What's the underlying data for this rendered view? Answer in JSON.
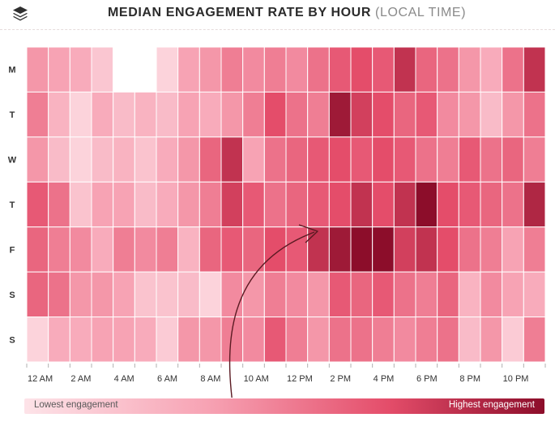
{
  "header": {
    "title_main": "MEDIAN ENGAGEMENT RATE BY HOUR",
    "title_sub": "(LOCAL TIME)"
  },
  "colors": {
    "low": "#fde3e8",
    "mid": "#f7a3b4",
    "high": "#e44d6a",
    "max": "#8c0d2a",
    "arrow": "#5a1a22"
  },
  "icons": {
    "logo": "layers-icon",
    "annotation": "curved-arrow-icon"
  },
  "chart_data": {
    "type": "heatmap",
    "title": "MEDIAN ENGAGEMENT RATE BY HOUR (LOCAL TIME)",
    "x_tick_labels": [
      "12 AM",
      "2 AM",
      "4 AM",
      "6 AM",
      "8 AM",
      "10 AM",
      "12 PM",
      "2 PM",
      "4 PM",
      "6 PM",
      "8 PM",
      "10 PM"
    ],
    "y_labels": [
      "M",
      "T",
      "W",
      "T",
      "F",
      "S",
      "S"
    ],
    "scale": "relative (0 = lowest, 1 = highest)",
    "legend": {
      "low": "Lowest engagement",
      "high": "Highest engagement"
    },
    "values": [
      [
        0.45,
        0.4,
        0.35,
        0.18,
        0.0,
        0.0,
        0.1,
        0.4,
        0.45,
        0.55,
        0.5,
        0.55,
        0.5,
        0.6,
        0.7,
        0.75,
        0.7,
        0.85,
        0.65,
        0.6,
        0.45,
        0.35,
        0.6,
        0.85
      ],
      [
        0.55,
        0.3,
        0.1,
        0.35,
        0.25,
        0.3,
        0.25,
        0.4,
        0.35,
        0.45,
        0.55,
        0.75,
        0.6,
        0.55,
        0.95,
        0.8,
        0.75,
        0.65,
        0.7,
        0.5,
        0.45,
        0.25,
        0.45,
        0.6
      ],
      [
        0.45,
        0.25,
        0.1,
        0.25,
        0.3,
        0.2,
        0.35,
        0.45,
        0.65,
        0.85,
        0.4,
        0.6,
        0.65,
        0.7,
        0.75,
        0.7,
        0.75,
        0.7,
        0.6,
        0.55,
        0.7,
        0.6,
        0.65,
        0.55
      ],
      [
        0.7,
        0.6,
        0.2,
        0.4,
        0.4,
        0.25,
        0.35,
        0.45,
        0.55,
        0.8,
        0.7,
        0.6,
        0.65,
        0.7,
        0.75,
        0.85,
        0.75,
        0.85,
        1.0,
        0.75,
        0.7,
        0.65,
        0.6,
        0.9
      ],
      [
        0.65,
        0.55,
        0.5,
        0.35,
        0.55,
        0.5,
        0.55,
        0.3,
        0.65,
        0.7,
        0.65,
        0.75,
        0.7,
        0.85,
        0.95,
        1.0,
        1.0,
        0.8,
        0.85,
        0.75,
        0.6,
        0.55,
        0.4,
        0.55
      ],
      [
        0.65,
        0.6,
        0.45,
        0.45,
        0.4,
        0.2,
        0.2,
        0.25,
        0.1,
        0.5,
        0.45,
        0.55,
        0.5,
        0.45,
        0.7,
        0.65,
        0.7,
        0.6,
        0.55,
        0.65,
        0.3,
        0.5,
        0.4,
        0.35
      ],
      [
        0.1,
        0.35,
        0.35,
        0.4,
        0.4,
        0.35,
        0.15,
        0.45,
        0.45,
        0.55,
        0.5,
        0.7,
        0.55,
        0.45,
        0.6,
        0.6,
        0.55,
        0.5,
        0.55,
        0.6,
        0.25,
        0.45,
        0.15,
        0.55
      ]
    ]
  }
}
